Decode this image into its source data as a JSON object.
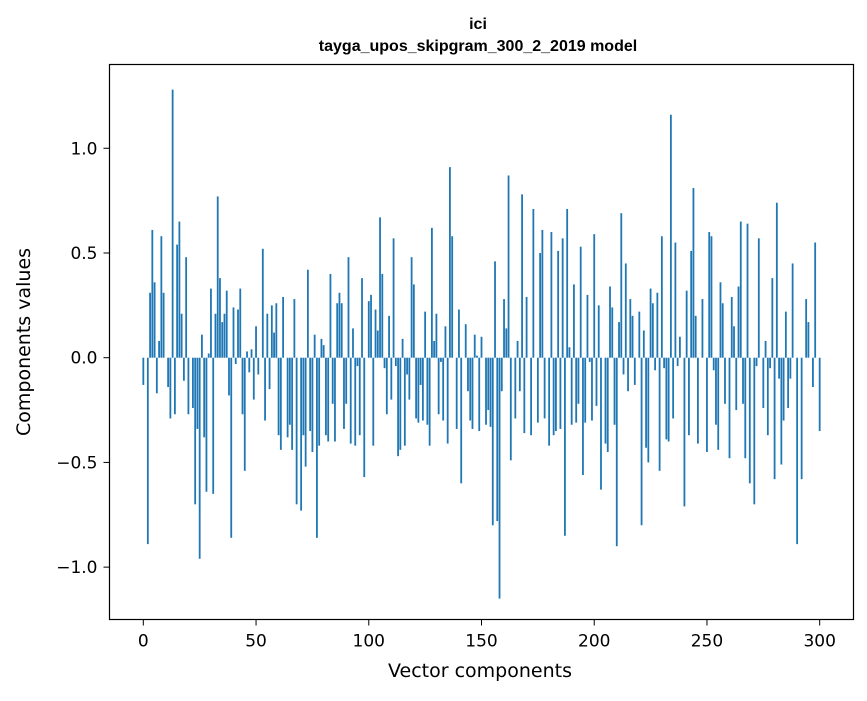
{
  "chart_data": {
    "type": "bar",
    "title_line1": "ici",
    "title_line2": "tayga_upos_skipgram_300_2_2019 model",
    "xlabel": "Vector components",
    "ylabel": "Components values",
    "xlim": [
      -15,
      315
    ],
    "ylim": [
      -1.25,
      1.4
    ],
    "xticks": [
      0,
      50,
      100,
      150,
      200,
      250,
      300
    ],
    "xtick_labels": [
      "0",
      "50",
      "100",
      "150",
      "200",
      "250",
      "300"
    ],
    "yticks": [
      -1.0,
      -0.5,
      0.0,
      0.5,
      1.0
    ],
    "ytick_labels": [
      "−1.0",
      "−0.5",
      "0.0",
      "0.5",
      "1.0"
    ],
    "bar_color": "#1f77b4",
    "values": [
      -0.13,
      0.0,
      -0.89,
      0.31,
      0.61,
      0.36,
      -0.17,
      0.08,
      0.58,
      0.31,
      0.0,
      -0.14,
      -0.29,
      1.28,
      -0.27,
      0.54,
      0.65,
      0.21,
      -0.11,
      0.48,
      -0.27,
      0.0,
      -0.24,
      -0.7,
      -0.34,
      -0.96,
      0.11,
      -0.38,
      -0.64,
      0.02,
      0.33,
      -0.65,
      0.21,
      0.77,
      0.38,
      0.17,
      0.21,
      0.32,
      -0.18,
      -0.86,
      0.24,
      -0.03,
      0.23,
      0.33,
      -0.27,
      -0.54,
      0.03,
      -0.07,
      0.04,
      -0.2,
      0.15,
      -0.08,
      0.0,
      0.52,
      -0.3,
      0.21,
      -0.15,
      0.25,
      0.12,
      0.26,
      -0.37,
      -0.44,
      0.29,
      0.0,
      -0.38,
      -0.32,
      -0.44,
      0.28,
      -0.7,
      0.0,
      -0.73,
      -0.37,
      -0.52,
      0.42,
      -0.35,
      -0.45,
      0.11,
      -0.86,
      -0.42,
      0.09,
      0.06,
      -0.37,
      -0.4,
      0.4,
      -0.22,
      -0.4,
      0.26,
      0.31,
      0.26,
      -0.34,
      -0.22,
      0.48,
      -0.41,
      0.14,
      -0.42,
      -0.04,
      -0.37,
      0.38,
      -0.57,
      0.0,
      0.27,
      0.3,
      -0.42,
      0.23,
      0.13,
      0.67,
      0.4,
      -0.05,
      -0.27,
      0.2,
      -0.2,
      0.57,
      -0.04,
      -0.47,
      -0.44,
      0.09,
      -0.42,
      -0.08,
      -0.2,
      0.48,
      0.35,
      -0.29,
      -0.31,
      -0.13,
      -0.3,
      0.22,
      -0.32,
      -0.42,
      0.62,
      0.08,
      0.21,
      -0.27,
      -0.02,
      -0.3,
      0.15,
      -0.41,
      0.91,
      0.58,
      0.0,
      -0.34,
      0.23,
      -0.6,
      0.0,
      0.16,
      -0.16,
      -0.3,
      -0.34,
      0.11,
      0.01,
      -0.35,
      0.1,
      0.0,
      -0.32,
      -0.25,
      -0.33,
      -0.8,
      0.46,
      -0.78,
      -1.15,
      -0.16,
      0.28,
      0.14,
      0.87,
      -0.49,
      0.0,
      -0.29,
      0.08,
      -0.16,
      0.78,
      -0.36,
      0.29,
      0.0,
      -0.37,
      0.71,
      0.0,
      -0.31,
      0.5,
      0.61,
      -0.29,
      0.0,
      -0.42,
      0.6,
      -0.37,
      -0.35,
      0.51,
      -0.34,
      0.57,
      -0.85,
      0.71,
      0.05,
      -0.32,
      0.35,
      -0.31,
      -0.22,
      0.53,
      -0.56,
      -0.31,
      0.3,
      -0.02,
      -0.3,
      0.59,
      -0.23,
      0.25,
      -0.63,
      0.0,
      -0.41,
      -0.45,
      0.34,
      0.24,
      -0.32,
      -0.9,
      0.17,
      0.69,
      -0.08,
      0.45,
      -0.16,
      0.28,
      0.2,
      -0.13,
      0.0,
      0.22,
      -0.8,
      0.13,
      -0.43,
      -0.5,
      0.33,
      0.26,
      -0.06,
      0.31,
      -0.54,
      0.58,
      -0.05,
      -0.39,
      -0.4,
      1.16,
      -0.29,
      0.55,
      -0.04,
      0.1,
      0.0,
      -0.71,
      0.32,
      -0.37,
      0.51,
      0.81,
      0.2,
      -0.41,
      0.0,
      0.28,
      0.0,
      -0.45,
      0.6,
      0.58,
      -0.06,
      -0.32,
      -0.44,
      0.36,
      0.26,
      -0.22,
      0.0,
      -0.48,
      0.29,
      0.15,
      -0.25,
      0.34,
      0.65,
      -0.22,
      -0.48,
      0.64,
      -0.6,
      0.0,
      -0.7,
      -0.04,
      0.57,
      0.0,
      -0.24,
      0.08,
      -0.37,
      -0.05,
      0.38,
      -0.58,
      0.74,
      -0.1,
      -0.51,
      -0.3,
      0.22,
      -0.24,
      -0.1,
      0.45,
      0.0,
      -0.89,
      0.0,
      -0.58,
      0.0,
      0.28,
      0.17,
      0.0,
      -0.14,
      0.55,
      0.0,
      -0.35
    ]
  }
}
